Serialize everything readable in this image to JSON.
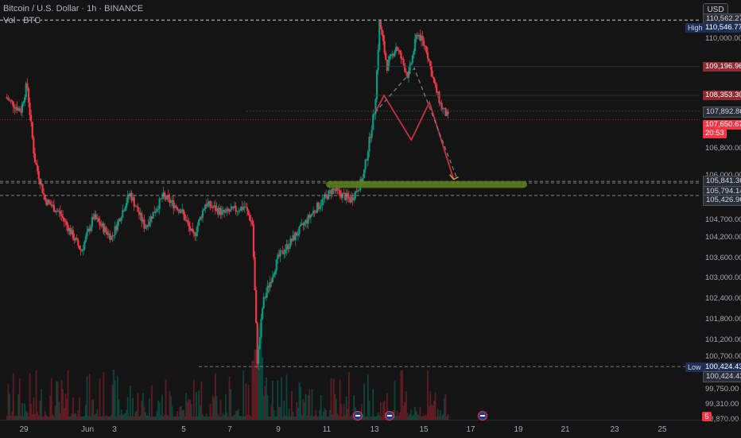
{
  "header": {
    "symbol_line": "Bitcoin / U.S. Dollar · 1h · BINANCE",
    "vol_line": "Vol · BTC"
  },
  "currency_button": "USD",
  "price_axis": {
    "ticks": [
      "110,000.00",
      "106,800.00",
      "106,000.00",
      "104,700.00",
      "104,200.00",
      "103,600.00",
      "103,000.00",
      "102,400.00",
      "101,800.00",
      "101,200.00",
      "100,700.00",
      "99,750.00",
      "99,310.00",
      "98,870.00"
    ],
    "tags": {
      "top": "110,562.27",
      "high": "110,546.77",
      "level_a": "109,196.96",
      "level_b": "108,353.30",
      "level_c": "107,892.86",
      "current": "107,650.67",
      "countdown": "20:53",
      "zone_top": "105,841.36",
      "zone_mid": "105,794.14",
      "zone_low": "105,426.96",
      "low": "100,424.43",
      "low2": "100,424.43"
    },
    "high_badge": "High",
    "low_badge": "Low"
  },
  "time_axis": {
    "labels": [
      "29",
      "Jun",
      "3",
      "5",
      "7",
      "9",
      "11",
      "13",
      "15",
      "17",
      "19",
      "21",
      "23",
      "25"
    ]
  },
  "event_badge": "5",
  "colors": {
    "up": "#089981",
    "down": "#f23645",
    "zone": "#5a7d1e",
    "projection": "#c9303e",
    "dashed_projection": "#787b86"
  },
  "chart_data": {
    "type": "candlestick",
    "symbol": "Bitcoin / U.S. Dollar",
    "interval": "1h",
    "exchange": "BINANCE",
    "high": 110546.77,
    "low": 100424.43,
    "last": 107650.67,
    "horizontal_levels": [
      110562.27,
      110546.77,
      109196.96,
      108353.3,
      107892.86,
      105841.36,
      105794.14,
      105426.96,
      100424.43
    ],
    "support_zone": [
      105650,
      105850
    ],
    "projection_solid": [
      [
        11.6,
        107850
      ],
      [
        11.9,
        108350
      ],
      [
        12.8,
        107050
      ],
      [
        13.4,
        108150
      ],
      [
        14.2,
        105900
      ]
    ],
    "projection_dashed": [
      [
        11.6,
        107850
      ],
      [
        12.9,
        109150
      ],
      [
        14.3,
        105950
      ]
    ],
    "ylim": [
      98870,
      110700
    ]
  }
}
